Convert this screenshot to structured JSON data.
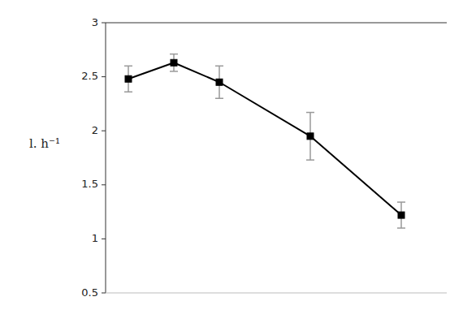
{
  "chart_data": {
    "type": "line",
    "x": [
      2,
      4,
      6,
      10,
      14
    ],
    "values": [
      2.48,
      2.63,
      2.45,
      1.95,
      1.22
    ],
    "errors": [
      0.12,
      0.08,
      0.15,
      0.22,
      0.12
    ],
    "ylabel": "l. h⁻¹",
    "xlim": [
      1,
      16
    ],
    "ylim": [
      0.5,
      3
    ],
    "yticks": [
      0.5,
      1,
      1.5,
      2,
      2.5,
      3
    ],
    "color": "#000000",
    "marker": "square",
    "grid": false,
    "tick_labels": "y"
  }
}
